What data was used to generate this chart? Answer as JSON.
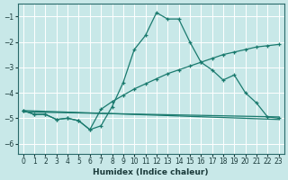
{
  "xlabel": "Humidex (Indice chaleur)",
  "background_color": "#c8e8e8",
  "grid_color": "#ffffff",
  "line_color": "#1a7a6e",
  "xlim": [
    -0.5,
    23.5
  ],
  "ylim": [
    -6.4,
    -0.5
  ],
  "yticks": [
    -6,
    -5,
    -4,
    -3,
    -2,
    -1
  ],
  "xticks": [
    0,
    1,
    2,
    3,
    4,
    5,
    6,
    7,
    8,
    9,
    10,
    11,
    12,
    13,
    14,
    15,
    16,
    17,
    18,
    19,
    20,
    21,
    22,
    23
  ],
  "line1_x": [
    0,
    1,
    2,
    3,
    4,
    5,
    6,
    7,
    8,
    9,
    10,
    11,
    12,
    13,
    14,
    15,
    16,
    17,
    18,
    19,
    20,
    21,
    22,
    23
  ],
  "line1_y": [
    -4.7,
    -4.85,
    -4.85,
    -5.05,
    -5.0,
    -5.1,
    -5.45,
    -5.3,
    -4.55,
    -3.6,
    -2.3,
    -1.75,
    -0.85,
    -1.1,
    -1.1,
    -2.0,
    -2.8,
    -3.1,
    -3.5,
    -3.3,
    -4.0,
    -4.4,
    -4.95,
    -5.0
  ],
  "line2_x": [
    0,
    1,
    2,
    3,
    4,
    5,
    6,
    7,
    8,
    9,
    10,
    11,
    12,
    13,
    14,
    15,
    16,
    17,
    18,
    19,
    20,
    21,
    22,
    23
  ],
  "line2_y": [
    -4.7,
    -4.85,
    -4.85,
    -5.05,
    -5.0,
    -5.1,
    -5.45,
    -4.65,
    -4.35,
    -4.1,
    -3.85,
    -3.65,
    -3.45,
    -3.25,
    -3.1,
    -2.95,
    -2.8,
    -2.65,
    -2.5,
    -2.4,
    -2.3,
    -2.2,
    -2.15,
    -2.1
  ],
  "line3_x": [
    0,
    23
  ],
  "line3_y": [
    -4.75,
    -4.95
  ],
  "line4_x": [
    0,
    23
  ],
  "line4_y": [
    -4.7,
    -5.05
  ]
}
